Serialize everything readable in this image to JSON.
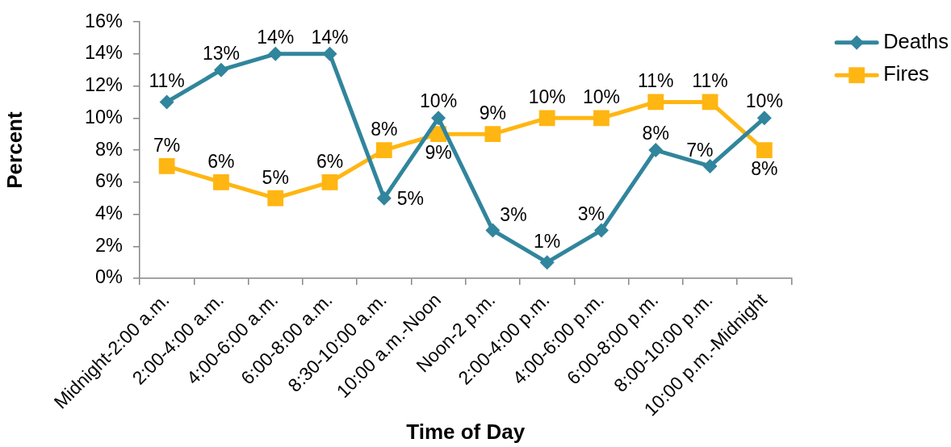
{
  "chart_data": {
    "type": "line",
    "xlabel": "Time of Day",
    "ylabel": "Percent",
    "categories": [
      "Midnight-2:00 a.m.",
      "2:00-4:00 a.m.",
      "4:00-6:00 a.m.",
      "6:00-8:00 a.m.",
      "8:30-10:00 a.m.",
      "10:00 a.m.-Noon",
      "Noon-2 p.m.",
      "2:00-4:00 p.m.",
      "4:00-6:00 p.m.",
      "6:00-8:00 p.m.",
      "8:00-10:00 p.m.",
      "10:00 p.m.-Midnight"
    ],
    "series": [
      {
        "name": "Deaths",
        "color": "#31859c",
        "marker": "diamond",
        "values": [
          11,
          13,
          14,
          14,
          5,
          10,
          3,
          1,
          3,
          8,
          7,
          10
        ],
        "value_labels": [
          "11%",
          "13%",
          "14%",
          "14%",
          "5%",
          "10%",
          "3%",
          "1%",
          "3%",
          "8%",
          "7%",
          "10%"
        ]
      },
      {
        "name": "Fires",
        "color": "#ffb612",
        "marker": "square",
        "values": [
          7,
          6,
          5,
          6,
          8,
          9,
          9,
          10,
          10,
          11,
          11,
          8
        ],
        "value_labels": [
          "7%",
          "6%",
          "5%",
          "6%",
          "8%",
          "9%",
          "9%",
          "10%",
          "10%",
          "11%",
          "11%",
          "8%"
        ]
      }
    ],
    "ylim": [
      0,
      16
    ],
    "yticks": [
      {
        "value": 0,
        "label": "0%"
      },
      {
        "value": 2,
        "label": "2%"
      },
      {
        "value": 4,
        "label": "4%"
      },
      {
        "value": 6,
        "label": "6%"
      },
      {
        "value": 8,
        "label": "8%"
      },
      {
        "value": 10,
        "label": "10%"
      },
      {
        "value": 12,
        "label": "12%"
      },
      {
        "value": 14,
        "label": "14%"
      },
      {
        "value": 16,
        "label": "16%"
      }
    ],
    "grid": false,
    "legend": "top right"
  }
}
